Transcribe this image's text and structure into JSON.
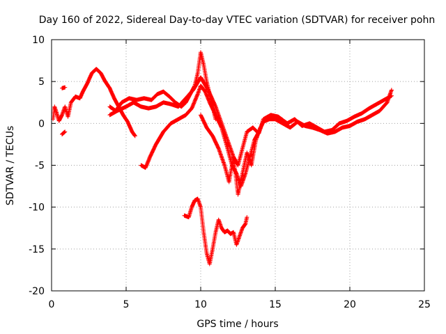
{
  "chart_data": {
    "type": "scatter",
    "title": "Day 160 of 2022, Sidereal Day-to-day VTEC variation (SDTVAR) for receiver pohn",
    "xlabel": "GPS time / hours",
    "ylabel": "SDTVAR / TECUs",
    "xlim": [
      0,
      25
    ],
    "ylim": [
      -20,
      10
    ],
    "xticks": [
      0,
      5,
      10,
      15,
      20,
      25
    ],
    "yticks": [
      -20,
      -15,
      -10,
      -5,
      0,
      5,
      10
    ],
    "grid": true,
    "marker": "plus",
    "color": "#ff0000",
    "series": [
      {
        "segments": [
          [
            [
              0.1,
              0.5
            ],
            [
              0.2,
              2.0
            ],
            [
              0.35,
              1.2
            ],
            [
              0.5,
              0.3
            ],
            [
              0.7,
              1.0
            ],
            [
              0.9,
              2.0
            ],
            [
              1.1,
              0.8
            ],
            [
              1.3,
              2.5
            ],
            [
              1.6,
              3.2
            ],
            [
              1.9,
              3.0
            ],
            [
              2.1,
              3.8
            ],
            [
              2.4,
              4.8
            ],
            [
              2.7,
              6.0
            ],
            [
              3.0,
              6.5
            ],
            [
              3.3,
              6.0
            ],
            [
              3.6,
              5.0
            ],
            [
              3.9,
              4.2
            ],
            [
              4.2,
              3.0
            ],
            [
              4.5,
              2.0
            ],
            [
              4.8,
              1.0
            ],
            [
              5.1,
              0.2
            ],
            [
              5.4,
              -1.0
            ],
            [
              5.6,
              -1.5
            ]
          ],
          [
            [
              3.9,
              2.0
            ],
            [
              4.3,
              1.5
            ],
            [
              4.7,
              2.5
            ],
            [
              5.2,
              3.0
            ],
            [
              5.7,
              2.8
            ],
            [
              6.2,
              3.0
            ],
            [
              6.7,
              2.8
            ],
            [
              7.1,
              3.5
            ],
            [
              7.5,
              3.8
            ],
            [
              7.9,
              3.2
            ],
            [
              8.3,
              2.5
            ],
            [
              8.7,
              2.0
            ],
            [
              9.0,
              2.5
            ],
            [
              9.3,
              3.5
            ],
            [
              9.6,
              4.5
            ],
            [
              9.8,
              6.0
            ],
            [
              10.0,
              8.5
            ],
            [
              10.2,
              7.0
            ],
            [
              10.4,
              5.0
            ],
            [
              10.6,
              3.5
            ],
            [
              10.8,
              2.0
            ],
            [
              11.0,
              0.5
            ]
          ],
          [
            [
              3.9,
              1.0
            ],
            [
              4.4,
              1.5
            ],
            [
              5.0,
              2.0
            ],
            [
              5.5,
              2.5
            ],
            [
              6.0,
              2.0
            ],
            [
              6.5,
              1.8
            ],
            [
              7.0,
              2.0
            ],
            [
              7.5,
              2.5
            ],
            [
              8.0,
              2.3
            ],
            [
              8.5,
              2.0
            ],
            [
              9.0,
              3.0
            ],
            [
              9.5,
              4.0
            ],
            [
              10.0,
              5.5
            ],
            [
              10.5,
              4.0
            ],
            [
              11.0,
              2.0
            ],
            [
              11.4,
              0.0
            ],
            [
              11.8,
              -2.0
            ],
            [
              12.2,
              -4.0
            ],
            [
              12.5,
              -5.0
            ],
            [
              12.8,
              -3.0
            ],
            [
              13.1,
              -1.0
            ],
            [
              13.5,
              -0.5
            ],
            [
              13.9,
              -1.2
            ],
            [
              14.2,
              0.5
            ],
            [
              14.7,
              1.0
            ],
            [
              15.2,
              0.8
            ],
            [
              15.8,
              0.0
            ],
            [
              16.3,
              0.5
            ],
            [
              16.8,
              -0.3
            ],
            [
              17.3,
              0.0
            ],
            [
              17.8,
              -0.5
            ],
            [
              18.3,
              -1.0
            ],
            [
              18.8,
              -0.8
            ],
            [
              19.3,
              0.0
            ],
            [
              19.8,
              0.3
            ],
            [
              20.3,
              0.8
            ],
            [
              20.8,
              1.2
            ],
            [
              21.3,
              1.8
            ],
            [
              21.8,
              2.3
            ],
            [
              22.3,
              2.8
            ],
            [
              22.8,
              3.3
            ]
          ],
          [
            [
              6.0,
              -5.0
            ],
            [
              6.3,
              -5.3
            ],
            [
              6.6,
              -4.0
            ],
            [
              7.0,
              -2.5
            ],
            [
              7.5,
              -1.0
            ],
            [
              8.0,
              0.0
            ],
            [
              8.5,
              0.5
            ],
            [
              9.0,
              1.0
            ],
            [
              9.4,
              1.8
            ],
            [
              9.8,
              3.5
            ],
            [
              10.0,
              4.5
            ],
            [
              10.3,
              3.8
            ],
            [
              10.6,
              2.5
            ],
            [
              11.0,
              1.0
            ],
            [
              11.4,
              -0.5
            ],
            [
              11.8,
              -3.0
            ],
            [
              12.1,
              -5.0
            ],
            [
              12.4,
              -6.0
            ],
            [
              12.7,
              -7.5
            ],
            [
              13.0,
              -6.0
            ],
            [
              13.3,
              -4.0
            ],
            [
              13.6,
              -2.0
            ],
            [
              13.9,
              -1.0
            ],
            [
              14.2,
              0.2
            ],
            [
              14.6,
              0.5
            ],
            [
              15.0,
              0.5
            ],
            [
              15.5,
              0.0
            ],
            [
              16.0,
              -0.5
            ],
            [
              16.5,
              0.2
            ],
            [
              17.0,
              -0.3
            ],
            [
              17.5,
              -0.5
            ],
            [
              18.0,
              -0.8
            ],
            [
              18.5,
              -1.2
            ],
            [
              19.0,
              -1.0
            ],
            [
              19.5,
              -0.5
            ],
            [
              20.0,
              -0.3
            ],
            [
              20.5,
              0.2
            ],
            [
              21.0,
              0.5
            ],
            [
              21.5,
              1.0
            ],
            [
              22.0,
              1.5
            ],
            [
              22.5,
              2.5
            ],
            [
              22.8,
              4.0
            ]
          ],
          [
            [
              10.0,
              1.0
            ],
            [
              10.4,
              -0.5
            ],
            [
              10.8,
              -1.5
            ],
            [
              11.2,
              -3.0
            ],
            [
              11.6,
              -5.0
            ],
            [
              11.9,
              -7.0
            ],
            [
              12.2,
              -4.0
            ],
            [
              12.5,
              -8.5
            ],
            [
              12.8,
              -6.0
            ],
            [
              13.1,
              -3.5
            ],
            [
              13.4,
              -5.0
            ],
            [
              13.7,
              -2.0
            ],
            [
              14.0,
              -0.5
            ]
          ],
          [
            [
              0.7,
              4.2
            ],
            [
              0.9,
              4.3
            ]
          ],
          [
            [
              0.7,
              -1.3
            ],
            [
              0.9,
              -1.0
            ]
          ],
          [
            [
              8.9,
              -11.0
            ],
            [
              9.2,
              -11.2
            ],
            [
              9.4,
              -10.0
            ],
            [
              9.6,
              -9.2
            ],
            [
              9.8,
              -9.0
            ],
            [
              10.0,
              -10.0
            ],
            [
              10.2,
              -13.0
            ],
            [
              10.4,
              -15.5
            ],
            [
              10.6,
              -16.8
            ],
            [
              10.8,
              -15.0
            ],
            [
              11.0,
              -13.0
            ],
            [
              11.2,
              -11.5
            ],
            [
              11.4,
              -12.5
            ],
            [
              11.6,
              -13.0
            ],
            [
              11.8,
              -12.8
            ],
            [
              12.0,
              -13.2
            ],
            [
              12.2,
              -13.0
            ],
            [
              12.4,
              -14.5
            ],
            [
              12.6,
              -13.5
            ],
            [
              12.8,
              -12.5
            ],
            [
              13.0,
              -12.0
            ],
            [
              13.1,
              -11.2
            ]
          ]
        ]
      }
    ]
  }
}
